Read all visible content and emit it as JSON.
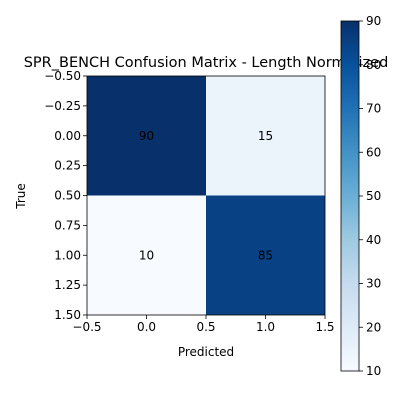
{
  "chart_data": {
    "type": "heatmap",
    "title": "SPR_BENCH Confusion Matrix - Length Normalized",
    "xlabel": "Predicted",
    "ylabel": "True",
    "matrix": [
      [
        90,
        15
      ],
      [
        10,
        85
      ]
    ],
    "xlim": [
      -0.5,
      1.5
    ],
    "ylim": [
      1.5,
      -0.5
    ],
    "xticks": [
      "−0.5",
      "0.0",
      "0.5",
      "1.0",
      "1.5"
    ],
    "yticks": [
      "−0.50",
      "−0.25",
      "0.00",
      "0.25",
      "0.50",
      "0.75",
      "1.00",
      "1.25",
      "1.50"
    ],
    "colorbar": {
      "min": 10,
      "max": 90,
      "ticks": [
        "10",
        "20",
        "30",
        "40",
        "50",
        "60",
        "70",
        "80",
        "90"
      ],
      "colormap": "Blues"
    },
    "grid": false
  }
}
